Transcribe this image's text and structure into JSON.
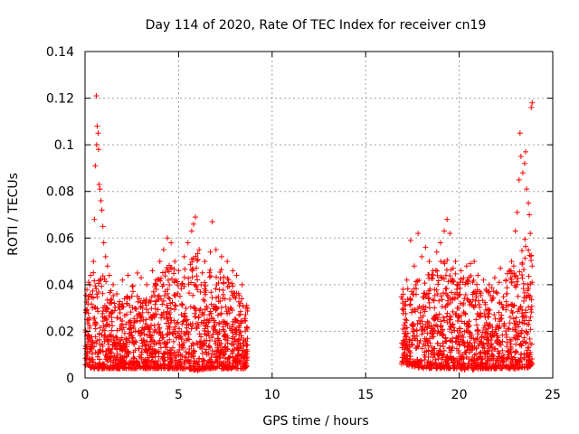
{
  "chart_data": {
    "type": "scatter",
    "title": "Day 114 of 2020, Rate Of TEC Index for receiver cn19",
    "xlabel": "GPS time / hours",
    "ylabel": "ROTI / TECUs",
    "xlim": [
      0,
      25
    ],
    "ylim": [
      0,
      0.14
    ],
    "xticks": [
      0,
      5,
      10,
      15,
      20,
      25
    ],
    "xtick_labels": [
      "0",
      "5",
      "10",
      "15",
      "20",
      "25"
    ],
    "yticks": [
      0,
      0.02,
      0.04,
      0.06,
      0.08,
      0.1,
      0.12,
      0.14
    ],
    "ytick_labels": [
      "0",
      "0.02",
      "0.04",
      "0.06",
      "0.08",
      "0.1",
      "0.12",
      "0.14"
    ],
    "grid": true,
    "marker": "+",
    "color": "#ff0000",
    "series": [
      {
        "name": "ROTI",
        "points": [
          [
            0.1,
            0.025
          ],
          [
            0.2,
            0.035
          ],
          [
            0.3,
            0.044
          ],
          [
            0.35,
            0.012
          ],
          [
            0.4,
            0.03
          ],
          [
            0.45,
            0.05
          ],
          [
            0.5,
            0.068
          ],
          [
            0.55,
            0.091
          ],
          [
            0.6,
            0.121
          ],
          [
            0.62,
            0.1
          ],
          [
            0.65,
            0.108
          ],
          [
            0.7,
            0.105
          ],
          [
            0.72,
            0.098
          ],
          [
            0.75,
            0.083
          ],
          [
            0.8,
            0.081
          ],
          [
            0.85,
            0.076
          ],
          [
            0.9,
            0.072
          ],
          [
            0.95,
            0.065
          ],
          [
            1.0,
            0.058
          ],
          [
            1.1,
            0.052
          ],
          [
            1.2,
            0.048
          ],
          [
            1.3,
            0.044
          ],
          [
            1.5,
            0.04
          ],
          [
            1.7,
            0.036
          ],
          [
            2.0,
            0.042
          ],
          [
            2.3,
            0.044
          ],
          [
            2.5,
            0.035
          ],
          [
            2.8,
            0.045
          ],
          [
            3.0,
            0.043
          ],
          [
            3.3,
            0.04
          ],
          [
            3.6,
            0.046
          ],
          [
            3.8,
            0.042
          ],
          [
            4.0,
            0.05
          ],
          [
            4.2,
            0.055
          ],
          [
            4.4,
            0.06
          ],
          [
            4.6,
            0.058
          ],
          [
            4.8,
            0.05
          ],
          [
            5.0,
            0.046
          ],
          [
            5.3,
            0.052
          ],
          [
            5.5,
            0.058
          ],
          [
            5.7,
            0.063
          ],
          [
            5.8,
            0.066
          ],
          [
            5.9,
            0.069
          ],
          [
            6.1,
            0.055
          ],
          [
            6.4,
            0.05
          ],
          [
            6.7,
            0.054
          ],
          [
            6.8,
            0.067
          ],
          [
            7.0,
            0.055
          ],
          [
            7.3,
            0.052
          ],
          [
            7.6,
            0.05
          ],
          [
            7.9,
            0.046
          ],
          [
            8.1,
            0.044
          ],
          [
            8.4,
            0.04
          ],
          [
            8.6,
            0.03
          ],
          [
            17.0,
            0.038
          ],
          [
            17.2,
            0.042
          ],
          [
            17.4,
            0.059
          ],
          [
            17.6,
            0.048
          ],
          [
            17.8,
            0.062
          ],
          [
            18.0,
            0.052
          ],
          [
            18.2,
            0.056
          ],
          [
            18.4,
            0.05
          ],
          [
            18.6,
            0.046
          ],
          [
            18.8,
            0.054
          ],
          [
            19.0,
            0.058
          ],
          [
            19.2,
            0.063
          ],
          [
            19.35,
            0.068
          ],
          [
            19.5,
            0.062
          ],
          [
            19.8,
            0.05
          ],
          [
            20.1,
            0.046
          ],
          [
            20.4,
            0.048
          ],
          [
            20.6,
            0.049
          ],
          [
            20.8,
            0.05
          ],
          [
            21.0,
            0.044
          ],
          [
            21.3,
            0.042
          ],
          [
            21.6,
            0.04
          ],
          [
            21.9,
            0.043
          ],
          [
            22.2,
            0.047
          ],
          [
            22.5,
            0.042
          ],
          [
            22.8,
            0.05
          ],
          [
            23.0,
            0.063
          ],
          [
            23.1,
            0.071
          ],
          [
            23.2,
            0.085
          ],
          [
            23.25,
            0.105
          ],
          [
            23.3,
            0.095
          ],
          [
            23.4,
            0.088
          ],
          [
            23.5,
            0.092
          ],
          [
            23.55,
            0.097
          ],
          [
            23.6,
            0.081
          ],
          [
            23.7,
            0.075
          ],
          [
            23.75,
            0.07
          ],
          [
            23.8,
            0.062
          ],
          [
            23.85,
            0.116
          ],
          [
            23.9,
            0.118
          ]
        ]
      }
    ],
    "envelope": {
      "segments": [
        [
          0.0,
          8.7
        ],
        [
          16.9,
          23.9
        ]
      ],
      "hours": [
        0.0,
        0.5,
        1.0,
        1.5,
        2.0,
        2.5,
        3.0,
        3.5,
        4.0,
        4.5,
        5.0,
        5.5,
        6.0,
        6.5,
        7.0,
        7.5,
        8.0,
        8.5,
        8.7,
        16.9,
        17.5,
        18.0,
        18.5,
        19.0,
        19.5,
        20.0,
        20.5,
        21.0,
        21.5,
        22.0,
        22.5,
        23.0,
        23.5,
        23.9
      ],
      "upper": [
        0.04,
        0.05,
        0.045,
        0.036,
        0.033,
        0.04,
        0.036,
        0.04,
        0.045,
        0.052,
        0.042,
        0.05,
        0.054,
        0.046,
        0.05,
        0.044,
        0.04,
        0.034,
        0.03,
        0.036,
        0.04,
        0.046,
        0.044,
        0.05,
        0.052,
        0.042,
        0.046,
        0.04,
        0.038,
        0.04,
        0.044,
        0.05,
        0.06,
        0.058
      ],
      "lower": [
        0.005,
        0.004,
        0.004,
        0.004,
        0.004,
        0.004,
        0.004,
        0.004,
        0.004,
        0.004,
        0.004,
        0.004,
        0.003,
        0.004,
        0.004,
        0.004,
        0.004,
        0.004,
        0.005,
        0.006,
        0.005,
        0.004,
        0.004,
        0.004,
        0.004,
        0.004,
        0.003,
        0.004,
        0.004,
        0.004,
        0.004,
        0.004,
        0.004,
        0.005
      ],
      "count": 2600
    }
  }
}
